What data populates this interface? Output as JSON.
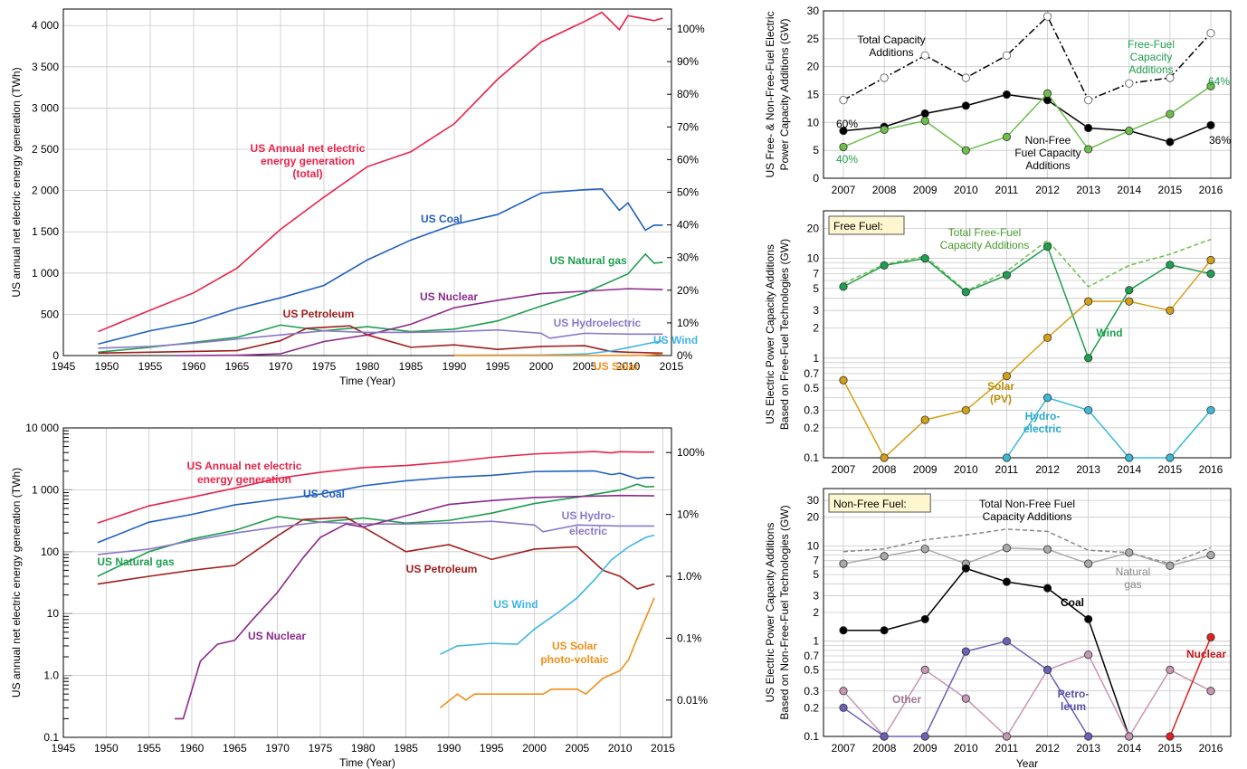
{
  "chart_data": [
    {
      "id": "tl",
      "type": "line",
      "xlabel": "Time (Year)",
      "ylabel": "US annual net electric energy generation (TWh)",
      "xlim": [
        1945,
        2015
      ],
      "ylim": [
        0,
        4200
      ],
      "xticks": [
        "1945",
        "1950",
        "1955",
        "1960",
        "1965",
        "1970",
        "1975",
        "1980",
        "1985",
        "1990",
        "1995",
        "2000",
        "2005",
        "2010",
        "2015"
      ],
      "yticks": [
        "0",
        "500",
        "1 000",
        "1 500",
        "2 000",
        "2 500",
        "3 000",
        "3 500",
        "4 000"
      ],
      "right_ticks": [
        "0%",
        "10%",
        "20%",
        "30%",
        "40%",
        "50%",
        "60%",
        "70%",
        "80%",
        "90%",
        "100%"
      ],
      "series": [
        {
          "name": "US Annual net electric energy generation (total)",
          "color": "#e8234a",
          "x": [
            1949,
            1955,
            1960,
            1965,
            1970,
            1975,
            1980,
            1985,
            1990,
            1995,
            2000,
            2005,
            2007,
            2009,
            2010,
            2013,
            2014
          ],
          "y": [
            290,
            550,
            760,
            1060,
            1530,
            1920,
            2290,
            2470,
            2810,
            3350,
            3800,
            4050,
            4160,
            3950,
            4120,
            4060,
            4090
          ]
        },
        {
          "name": "US Coal",
          "color": "#1f5fbf",
          "x": [
            1949,
            1955,
            1960,
            1965,
            1970,
            1975,
            1980,
            1985,
            1990,
            1995,
            2000,
            2005,
            2007,
            2009,
            2010,
            2012,
            2013,
            2014
          ],
          "y": [
            140,
            300,
            400,
            570,
            700,
            850,
            1160,
            1400,
            1590,
            1710,
            1970,
            2010,
            2020,
            1760,
            1850,
            1520,
            1580,
            1580
          ]
        },
        {
          "name": "US Natural gas",
          "color": "#1e9e4f",
          "x": [
            1949,
            1955,
            1960,
            1965,
            1970,
            1975,
            1980,
            1985,
            1990,
            1995,
            2000,
            2005,
            2010,
            2012,
            2013,
            2014
          ],
          "y": [
            40,
            100,
            160,
            220,
            370,
            300,
            350,
            290,
            320,
            420,
            600,
            760,
            990,
            1230,
            1120,
            1130
          ]
        },
        {
          "name": "US Nuclear",
          "color": "#8b2a8b",
          "x": [
            1958,
            1965,
            1970,
            1975,
            1980,
            1985,
            1990,
            1995,
            2000,
            2005,
            2010,
            2014
          ],
          "y": [
            0,
            4,
            22,
            170,
            250,
            380,
            580,
            670,
            750,
            780,
            810,
            800
          ]
        },
        {
          "name": "US Petroleum",
          "color": "#a01e1e",
          "x": [
            1949,
            1955,
            1960,
            1965,
            1970,
            1973,
            1978,
            1980,
            1985,
            1990,
            1995,
            2000,
            2005,
            2008,
            2010,
            2014
          ],
          "y": [
            30,
            40,
            50,
            60,
            180,
            330,
            360,
            250,
            100,
            130,
            75,
            110,
            120,
            50,
            40,
            30
          ]
        },
        {
          "name": "US Hydroelectric",
          "color": "#8a78c8",
          "x": [
            1949,
            1955,
            1960,
            1965,
            1970,
            1975,
            1980,
            1985,
            1990,
            1995,
            2000,
            2001,
            2005,
            2010,
            2014
          ],
          "y": [
            90,
            110,
            150,
            200,
            250,
            300,
            280,
            280,
            290,
            310,
            270,
            210,
            270,
            260,
            260
          ]
        },
        {
          "name": "US Wind",
          "color": "#3fb5e6",
          "x": [
            1990,
            2000,
            2005,
            2008,
            2010,
            2012,
            2014
          ],
          "y": [
            3,
            6,
            18,
            55,
            95,
            140,
            180
          ]
        },
        {
          "name": "US Solar",
          "color": "#f0901a",
          "x": [
            1990,
            2005,
            2010,
            2012,
            2014
          ],
          "y": [
            0.4,
            0.6,
            1,
            4,
            18
          ]
        }
      ],
      "labels": {
        "total": [
          "US Annual net electric",
          "energy generation",
          "(total)"
        ],
        "coal": "US Coal",
        "gas": "US Natural gas",
        "nuclear": "US Nuclear",
        "petroleum": "US Petroleum",
        "hydro": "US Hydroelectric",
        "wind": "US Wind",
        "solar": "US Solar"
      }
    },
    {
      "id": "bl",
      "type": "line",
      "yscale": "log",
      "xlabel": "Time (Year)",
      "ylabel": "US annual net electric energy generation (TWh)",
      "xlim": [
        1945,
        2016
      ],
      "ylim": [
        0.1,
        10000
      ],
      "xticks": [
        "1945",
        "1950",
        "1955",
        "1960",
        "1965",
        "1970",
        "1975",
        "1980",
        "1985",
        "1990",
        "1995",
        "2000",
        "2005",
        "2010",
        "2015"
      ],
      "yticks": [
        "0.1",
        "1.0",
        "10",
        "100",
        "1 000",
        "10 000"
      ],
      "right_ticks": [
        "0.01%",
        "0.1%",
        "1.0%",
        "10%",
        "100%"
      ],
      "labels": {
        "total": [
          "US Annual net electric",
          "energy generation"
        ],
        "coal": "US Coal",
        "hydro": [
          "US Hydro-",
          "electric"
        ],
        "gas": "US Natural gas",
        "petroleum": "US Petroleum",
        "wind": "US Wind",
        "nuclear": "US Nuclear",
        "solar": [
          "US Solar",
          "photo-voltaic"
        ]
      },
      "series": [
        {
          "name": "US Annual net electric energy generation",
          "color": "#e8234a",
          "x": [
            1949,
            1955,
            1960,
            1965,
            1970,
            1975,
            1980,
            1985,
            1990,
            1995,
            2000,
            2005,
            2007,
            2009,
            2010,
            2013,
            2014
          ],
          "y": [
            290,
            550,
            760,
            1060,
            1530,
            1920,
            2290,
            2470,
            2810,
            3350,
            3800,
            4050,
            4160,
            3950,
            4120,
            4060,
            4090
          ]
        },
        {
          "name": "US Coal",
          "color": "#1f5fbf",
          "x": [
            1949,
            1955,
            1960,
            1965,
            1970,
            1975,
            1980,
            1985,
            1990,
            1995,
            2000,
            2005,
            2007,
            2009,
            2010,
            2012,
            2013,
            2014
          ],
          "y": [
            140,
            300,
            400,
            570,
            700,
            850,
            1160,
            1400,
            1590,
            1710,
            1970,
            2010,
            2020,
            1760,
            1850,
            1520,
            1580,
            1580
          ]
        },
        {
          "name": "US Natural gas",
          "color": "#1e9e4f",
          "x": [
            1949,
            1955,
            1960,
            1965,
            1970,
            1975,
            1980,
            1985,
            1990,
            1995,
            2000,
            2005,
            2010,
            2012,
            2013,
            2014
          ],
          "y": [
            40,
            100,
            160,
            220,
            370,
            300,
            350,
            290,
            320,
            420,
            600,
            760,
            990,
            1230,
            1120,
            1130
          ]
        },
        {
          "name": "US Petroleum",
          "color": "#a01e1e",
          "x": [
            1949,
            1955,
            1960,
            1965,
            1970,
            1973,
            1978,
            1980,
            1985,
            1990,
            1995,
            2000,
            2005,
            2008,
            2010,
            2012,
            2014
          ],
          "y": [
            30,
            40,
            50,
            60,
            180,
            330,
            360,
            250,
            100,
            130,
            75,
            110,
            120,
            50,
            40,
            25,
            30
          ]
        },
        {
          "name": "US Hydro-electric",
          "color": "#8a78c8",
          "x": [
            1949,
            1955,
            1960,
            1965,
            1970,
            1975,
            1980,
            1985,
            1990,
            1995,
            2000,
            2001,
            2005,
            2010,
            2014
          ],
          "y": [
            90,
            110,
            150,
            200,
            250,
            300,
            280,
            280,
            290,
            310,
            270,
            210,
            270,
            260,
            260
          ]
        },
        {
          "name": "US Nuclear",
          "color": "#8b2a8b",
          "x": [
            1958,
            1959,
            1961,
            1963,
            1965,
            1967,
            1970,
            1973,
            1975,
            1978,
            1980,
            1985,
            1990,
            1995,
            2000,
            2005,
            2010,
            2014
          ],
          "y": [
            0.2,
            0.2,
            1.7,
            3.2,
            3.7,
            7.7,
            22,
            80,
            170,
            280,
            250,
            380,
            580,
            670,
            750,
            780,
            810,
            800
          ]
        },
        {
          "name": "US Wind",
          "color": "#3fb5e6",
          "x": [
            1989,
            1991,
            1995,
            1998,
            2000,
            2003,
            2005,
            2007,
            2009,
            2011,
            2013,
            2014
          ],
          "y": [
            2.2,
            3,
            3.3,
            3.2,
            5.6,
            11,
            18,
            35,
            74,
            120,
            170,
            185
          ]
        },
        {
          "name": "US Solar photo-voltaic",
          "color": "#f0901a",
          "x": [
            1989,
            1991,
            1992,
            1993,
            1997,
            2001,
            2002,
            2005,
            2006,
            2008,
            2010,
            2011,
            2012,
            2014
          ],
          "y": [
            0.3,
            0.5,
            0.4,
            0.5,
            0.5,
            0.5,
            0.6,
            0.6,
            0.5,
            0.9,
            1.2,
            1.8,
            4,
            18
          ]
        }
      ]
    },
    {
      "id": "rt",
      "type": "line",
      "ylabel": [
        "US Free- & Non-Free-Fuel Electric",
        "Power Capacity Additions (GW)"
      ],
      "categories": [
        "2007",
        "2008",
        "2009",
        "2010",
        "2011",
        "2012",
        "2013",
        "2014",
        "2015",
        "2016"
      ],
      "ylim": [
        0,
        30
      ],
      "yticks": [
        "0",
        "5",
        "10",
        "15",
        "20",
        "25",
        "30"
      ],
      "series": [
        {
          "name": "Total Capacity Additions",
          "color": "#000000",
          "style": "dashdot",
          "values": [
            14,
            18,
            22,
            18,
            22,
            29,
            14,
            17,
            18,
            26
          ]
        },
        {
          "name": "Non-Free Fuel Capacity Additions",
          "color": "#000000",
          "values": [
            8.5,
            9.2,
            11.6,
            13,
            15,
            14,
            9,
            8.5,
            6.5,
            9.5
          ]
        },
        {
          "name": "Free-Fuel Capacity Additions",
          "color": "#6cbf4a",
          "values": [
            5.6,
            8.7,
            10.3,
            5,
            7.4,
            15.2,
            5.2,
            8.5,
            11.5,
            16.5
          ]
        }
      ],
      "annotations": {
        "total": [
          "Total Capacity",
          "Additions"
        ],
        "free": [
          "Free-Fuel",
          "Capacity",
          "Additions"
        ],
        "nonfree": [
          "Non-Free",
          "Fuel Capacity",
          "Additions"
        ],
        "p60": "60%",
        "p40": "40%",
        "p64": "64%",
        "p36": "36%"
      }
    },
    {
      "id": "rm",
      "type": "line",
      "yscale": "log",
      "box": "Free Fuel:",
      "ylabel": [
        "US Electric Power Capacity Additions",
        "Based on Free-Fuel Technologies (GW)"
      ],
      "categories": [
        "2007",
        "2008",
        "2009",
        "2010",
        "2011",
        "2012",
        "2013",
        "2014",
        "2015",
        "2016"
      ],
      "ylim": [
        0.1,
        30
      ],
      "yticks": [
        "0.1",
        "0.2",
        "0.3",
        "0.5",
        "0.7",
        "1",
        "2",
        "3",
        "5",
        "7",
        "10",
        "20"
      ],
      "series": [
        {
          "name": "Total Free-Fuel Capacity Additions",
          "color": "#6cbf4a",
          "style": "dashed",
          "values": [
            5.6,
            8.7,
            10.5,
            4.7,
            7.4,
            15.2,
            5.2,
            8.5,
            11,
            15.5
          ]
        },
        {
          "name": "Wind",
          "color": "#1e9e4f",
          "values": [
            5.2,
            8.5,
            10.0,
            4.6,
            6.8,
            13.1,
            1.0,
            4.8,
            8.6,
            7.0
          ]
        },
        {
          "name": "Solar (PV)",
          "color": "#d4a017",
          "values": [
            0.6,
            0.1,
            0.24,
            0.3,
            0.66,
            1.6,
            3.7,
            3.7,
            3.0,
            9.6
          ]
        },
        {
          "name": "Hydro-electric",
          "color": "#3bb8d8",
          "values": [
            null,
            null,
            null,
            null,
            0.1,
            0.4,
            0.3,
            0.1,
            0.1,
            0.3
          ]
        }
      ],
      "annotations": {
        "total": [
          "Total Free-Fuel",
          "Capacity Additions"
        ],
        "wind": "Wind",
        "solar": [
          "Solar",
          "(PV)"
        ],
        "hydro": [
          "Hydro-",
          "electric"
        ]
      }
    },
    {
      "id": "rb",
      "type": "line",
      "yscale": "log",
      "box": "Non-Free Fuel:",
      "xlabel": "Year",
      "ylabel": [
        "US Electric Power Capacity Additions",
        "Based on Non-Free-Fuel Technologies (GW)"
      ],
      "categories": [
        "2007",
        "2008",
        "2009",
        "2010",
        "2011",
        "2012",
        "2013",
        "2014",
        "2015",
        "2016"
      ],
      "ylim": [
        0.1,
        40
      ],
      "yticks": [
        "0.1",
        "0.2",
        "0.3",
        "0.5",
        "0.7",
        "1",
        "2",
        "3",
        "5",
        "7",
        "10",
        "20",
        "30"
      ],
      "series": [
        {
          "name": "Total Non-Free Fuel Capacity Additions",
          "color": "#888888",
          "style": "dashed",
          "values": [
            8.7,
            9.3,
            11.6,
            13,
            15,
            14.2,
            9,
            8.5,
            6.5,
            9.6
          ]
        },
        {
          "name": "Natural gas",
          "color": "#aaaaaa",
          "values": [
            6.5,
            7.8,
            9.3,
            6.5,
            9.5,
            9.2,
            6.5,
            8.5,
            6.2,
            8.0
          ]
        },
        {
          "name": "Coal",
          "color": "#000000",
          "values": [
            1.3,
            1.3,
            1.7,
            5.8,
            4.2,
            3.6,
            1.7,
            0.1,
            null,
            null
          ]
        },
        {
          "name": "Other",
          "color": "#c896b4",
          "values": [
            0.3,
            0.1,
            0.5,
            0.25,
            0.1,
            0.5,
            0.72,
            0.1,
            0.5,
            0.3
          ]
        },
        {
          "name": "Petro-leum",
          "color": "#6a62b8",
          "values": [
            0.2,
            0.1,
            0.1,
            0.78,
            1.0,
            0.5,
            0.1,
            null,
            null,
            null
          ]
        },
        {
          "name": "Nuclear",
          "color": "#e02020",
          "values": [
            null,
            null,
            null,
            null,
            null,
            null,
            null,
            null,
            0.1,
            1.1
          ]
        }
      ],
      "annotations": {
        "total": [
          "Total Non-Free Fuel",
          "Capacity Additions"
        ],
        "gas": [
          "Natural",
          "gas"
        ],
        "coal": "Coal",
        "other": "Other",
        "petro": [
          "Petro-",
          "leum"
        ],
        "nuclear": "Nuclear"
      }
    }
  ]
}
